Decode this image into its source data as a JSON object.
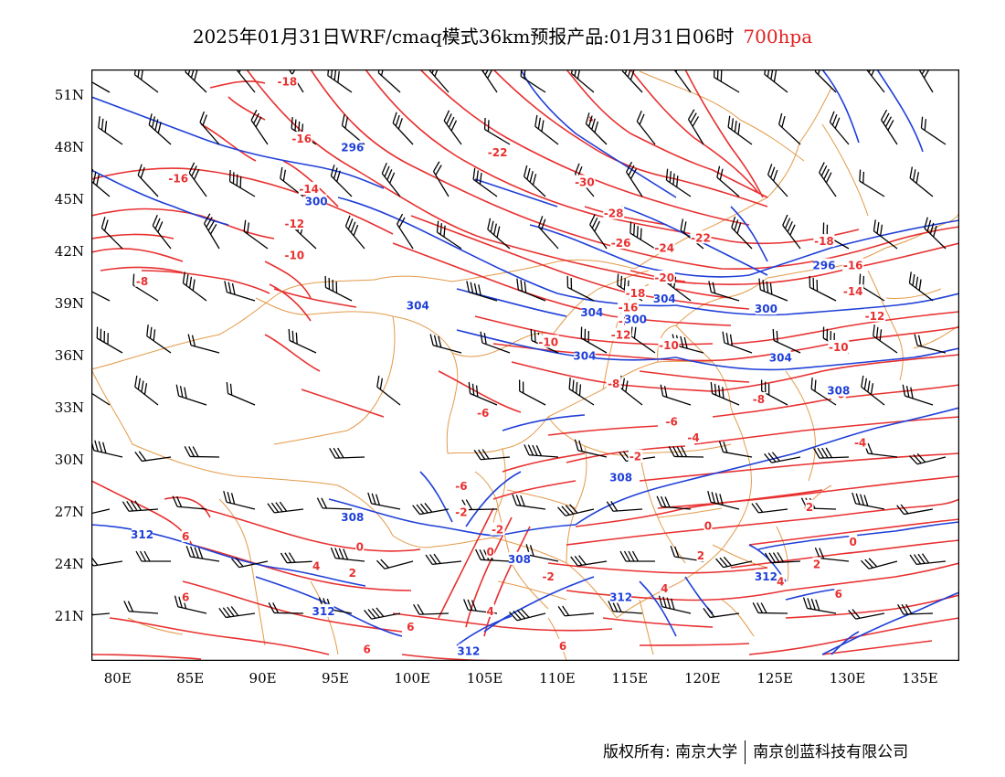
{
  "header": {
    "title": "2025年01月31日WRF/cmaq模式36km预报产品:01月31日06时",
    "level": "700hpa"
  },
  "axes": {
    "lat_labels": [
      "51N",
      "48N",
      "45N",
      "42N",
      "39N",
      "36N",
      "33N",
      "30N",
      "27N",
      "24N",
      "21N"
    ],
    "lon_labels": [
      "80E",
      "85E",
      "90E",
      "95E",
      "100E",
      "105E",
      "110E",
      "115E",
      "120E",
      "125E",
      "130E",
      "135E"
    ]
  },
  "colors": {
    "temperature": "#e83030",
    "height": "#1f3fd8",
    "border": "#e39a4a",
    "wind": "#000000"
  },
  "temp_labels": [
    {
      "t": "-18",
      "lon": 91.5,
      "lat": 51.8
    },
    {
      "t": "-16",
      "lon": 92.5,
      "lat": 48.5
    },
    {
      "t": "-16",
      "lon": 84.0,
      "lat": 46.2
    },
    {
      "t": "-14",
      "lon": 93.0,
      "lat": 45.6
    },
    {
      "t": "-12",
      "lon": 92.0,
      "lat": 43.6
    },
    {
      "t": "-10",
      "lon": 92.0,
      "lat": 41.8
    },
    {
      "t": "-8",
      "lon": 81.5,
      "lat": 40.3
    },
    {
      "t": "-22",
      "lon": 106.0,
      "lat": 47.7
    },
    {
      "t": "-30",
      "lon": 112.0,
      "lat": 46.0
    },
    {
      "t": "-28",
      "lon": 114.0,
      "lat": 44.2
    },
    {
      "t": "-26",
      "lon": 114.5,
      "lat": 42.5
    },
    {
      "t": "-24",
      "lon": 117.5,
      "lat": 42.2
    },
    {
      "t": "-22",
      "lon": 120.0,
      "lat": 42.8
    },
    {
      "t": "-20",
      "lon": 117.5,
      "lat": 40.5
    },
    {
      "t": "-18",
      "lon": 115.5,
      "lat": 39.6
    },
    {
      "t": "-16",
      "lon": 115.0,
      "lat": 38.8
    },
    {
      "t": "-14",
      "lon": 115.0,
      "lat": 38.0
    },
    {
      "t": "-12",
      "lon": 114.5,
      "lat": 37.2
    },
    {
      "t": "-10",
      "lon": 117.8,
      "lat": 36.6
    },
    {
      "t": "-10",
      "lon": 109.5,
      "lat": 36.8
    },
    {
      "t": "-8",
      "lon": 114.0,
      "lat": 34.4
    },
    {
      "t": "-18",
      "lon": 128.5,
      "lat": 42.6
    },
    {
      "t": "-16",
      "lon": 130.5,
      "lat": 41.2
    },
    {
      "t": "-14",
      "lon": 130.5,
      "lat": 39.7
    },
    {
      "t": "-12",
      "lon": 132.0,
      "lat": 38.3
    },
    {
      "t": "-10",
      "lon": 129.5,
      "lat": 36.5
    },
    {
      "t": "-8",
      "lon": 124.0,
      "lat": 33.5
    },
    {
      "t": "-6",
      "lon": 129.5,
      "lat": 33.8
    },
    {
      "t": "-6",
      "lon": 118.0,
      "lat": 32.2
    },
    {
      "t": "-4",
      "lon": 119.5,
      "lat": 31.3
    },
    {
      "t": "-4",
      "lon": 131.0,
      "lat": 31.0
    },
    {
      "t": "-2",
      "lon": 115.5,
      "lat": 30.2
    },
    {
      "t": "-2",
      "lon": 106.0,
      "lat": 26.0
    },
    {
      "t": "-2",
      "lon": 109.5,
      "lat": 23.3
    },
    {
      "t": "-6",
      "lon": 105.0,
      "lat": 32.7
    },
    {
      "t": "-6",
      "lon": 103.5,
      "lat": 28.5
    },
    {
      "t": "-2",
      "lon": 103.5,
      "lat": 27.0
    },
    {
      "t": "0",
      "lon": 96.5,
      "lat": 25.0
    },
    {
      "t": "0",
      "lon": 105.5,
      "lat": 24.7
    },
    {
      "t": "0",
      "lon": 120.5,
      "lat": 26.2
    },
    {
      "t": "0",
      "lon": 130.5,
      "lat": 25.3
    },
    {
      "t": "2",
      "lon": 127.5,
      "lat": 27.3
    },
    {
      "t": "2",
      "lon": 96.0,
      "lat": 23.5
    },
    {
      "t": "2",
      "lon": 120.0,
      "lat": 24.5
    },
    {
      "t": "2",
      "lon": 128.0,
      "lat": 24.0
    },
    {
      "t": "4",
      "lon": 93.5,
      "lat": 23.9
    },
    {
      "t": "4",
      "lon": 105.5,
      "lat": 21.3
    },
    {
      "t": "4",
      "lon": 117.5,
      "lat": 22.6
    },
    {
      "t": "4",
      "lon": 125.5,
      "lat": 23.0
    },
    {
      "t": "6",
      "lon": 84.5,
      "lat": 25.6
    },
    {
      "t": "6",
      "lon": 84.5,
      "lat": 22.1
    },
    {
      "t": "6",
      "lon": 100.0,
      "lat": 20.4
    },
    {
      "t": "6",
      "lon": 97.0,
      "lat": 19.1
    },
    {
      "t": "6",
      "lon": 110.5,
      "lat": 19.3
    },
    {
      "t": "6",
      "lon": 129.5,
      "lat": 22.3
    }
  ],
  "height_labels": [
    {
      "t": "296",
      "lon": 96.0,
      "lat": 48.0
    },
    {
      "t": "300",
      "lon": 93.5,
      "lat": 44.9
    },
    {
      "t": "304",
      "lon": 100.5,
      "lat": 38.9
    },
    {
      "t": "304",
      "lon": 117.5,
      "lat": 39.3
    },
    {
      "t": "304",
      "lon": 112.5,
      "lat": 38.5
    },
    {
      "t": "300",
      "lon": 115.5,
      "lat": 38.1
    },
    {
      "t": "300",
      "lon": 124.5,
      "lat": 38.7
    },
    {
      "t": "296",
      "lon": 128.5,
      "lat": 41.2
    },
    {
      "t": "304",
      "lon": 125.5,
      "lat": 35.9
    },
    {
      "t": "304",
      "lon": 112.0,
      "lat": 36.0
    },
    {
      "t": "308",
      "lon": 129.5,
      "lat": 34.0
    },
    {
      "t": "308",
      "lon": 114.5,
      "lat": 29.0
    },
    {
      "t": "308",
      "lon": 96.0,
      "lat": 26.7
    },
    {
      "t": "312",
      "lon": 81.5,
      "lat": 25.7
    },
    {
      "t": "308",
      "lon": 107.5,
      "lat": 24.3
    },
    {
      "t": "312",
      "lon": 114.5,
      "lat": 22.1
    },
    {
      "t": "312",
      "lon": 124.5,
      "lat": 23.3
    },
    {
      "t": "312",
      "lon": 94.0,
      "lat": 21.3
    },
    {
      "t": "312",
      "lon": 104.0,
      "lat": 19.0
    }
  ],
  "footer": {
    "copyright": "版权所有: 南京大学",
    "company": "南京创蓝科技有限公司"
  }
}
